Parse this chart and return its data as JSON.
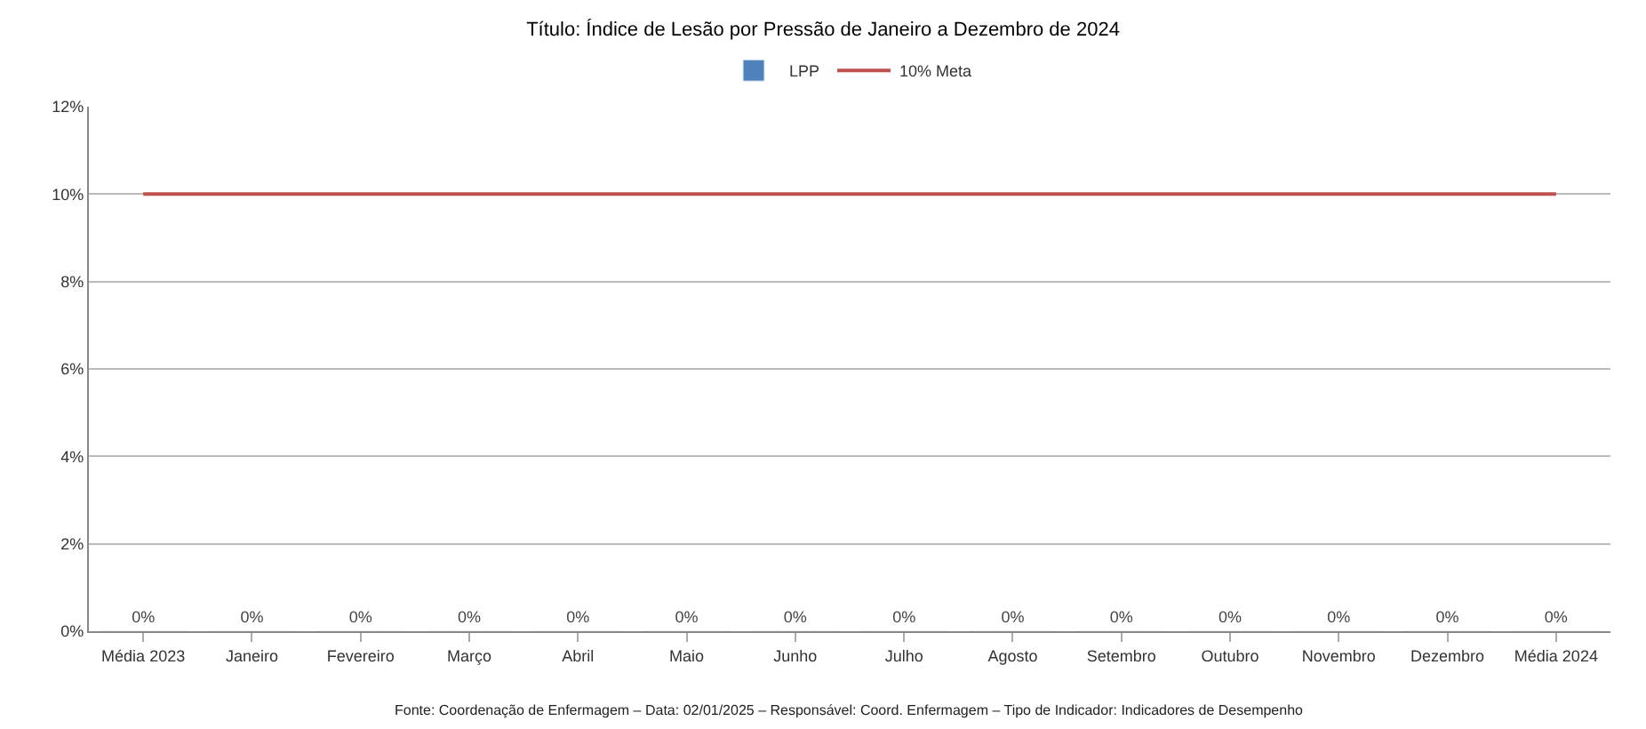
{
  "chart_data": {
    "type": "bar",
    "title": "Título: Índice de Lesão por Pressão de Janeiro a Dezembro de 2024",
    "categories": [
      "Média 2023",
      "Janeiro",
      "Fevereiro",
      "Março",
      "Abril",
      "Maio",
      "Junho",
      "Julho",
      "Agosto",
      "Setembro",
      "Outubro",
      "Novembro",
      "Dezembro",
      "Média 2024"
    ],
    "series": [
      {
        "name": "LPP",
        "color": "#4f81bd",
        "values": [
          0,
          0,
          0,
          0,
          0,
          0,
          0,
          0,
          0,
          0,
          0,
          0,
          0,
          0
        ],
        "value_labels": [
          "0%",
          "0%",
          "0%",
          "0%",
          "0%",
          "0%",
          "0%",
          "0%",
          "0%",
          "0%",
          "0%",
          "0%",
          "0%",
          "0%"
        ]
      },
      {
        "name": "10% Meta",
        "type": "line",
        "color": "#c0504d",
        "values": [
          10,
          10,
          10,
          10,
          10,
          10,
          10,
          10,
          10,
          10,
          10,
          10,
          10,
          10
        ]
      }
    ],
    "ylim": [
      0,
      12
    ],
    "yticks": [
      {
        "value": 0,
        "label": "0%"
      },
      {
        "value": 2,
        "label": "2%"
      },
      {
        "value": 4,
        "label": "4%"
      },
      {
        "value": 6,
        "label": "6%"
      },
      {
        "value": 8,
        "label": "8%"
      },
      {
        "value": 10,
        "label": "10%"
      },
      {
        "value": 12,
        "label": "12%"
      }
    ],
    "grid": "y",
    "legend": "top",
    "marker": "none",
    "line_style": "solid",
    "annotations": [
      "Fonte: Coordenação de Enfermagem – Data: 02/01/2025 – Responsável: Coord. Enfermagem – Tipo de Indicador: Indicadores de Desempenho"
    ]
  }
}
